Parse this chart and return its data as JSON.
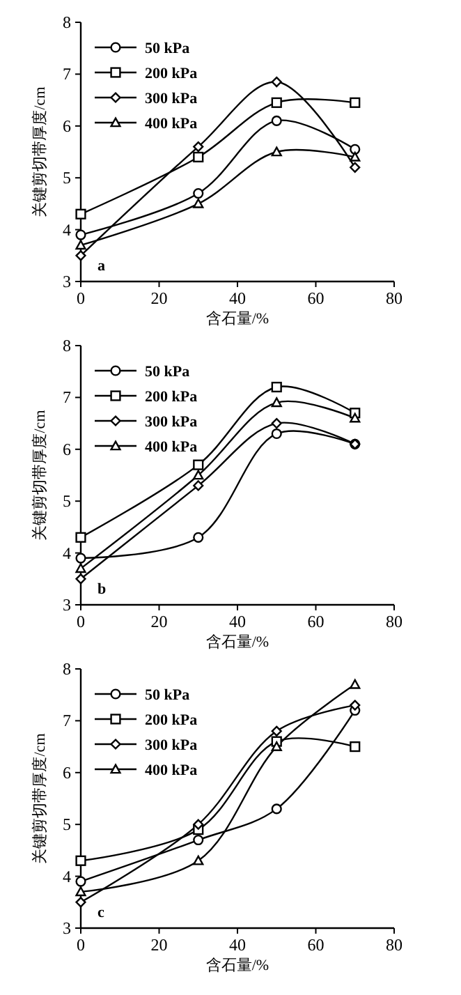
{
  "chart_data": [
    {
      "type": "line",
      "xlabel": "含石量/%",
      "ylabel": "关键剪切带厚度/cm",
      "annotations": [
        "a"
      ],
      "x": [
        0,
        30,
        50,
        70
      ],
      "xlim": [
        0,
        80
      ],
      "ylim": [
        3,
        8
      ],
      "xticks": [
        0,
        20,
        40,
        60,
        80
      ],
      "yticks": [
        3,
        4,
        5,
        6,
        7,
        8
      ],
      "legend": "top left",
      "grid": false,
      "series": [
        {
          "name": "50 kPa",
          "color": "#000000",
          "marker": "circle",
          "values": [
            3.9,
            4.7,
            6.1,
            5.55
          ]
        },
        {
          "name": "200 kPa",
          "color": "#000000",
          "marker": "square",
          "values": [
            4.3,
            5.4,
            6.45,
            6.45
          ]
        },
        {
          "name": "300 kPa",
          "color": "#000000",
          "marker": "diamond",
          "values": [
            3.5,
            5.6,
            6.85,
            5.2
          ]
        },
        {
          "name": "400 kPa",
          "color": "#000000",
          "marker": "triangle",
          "values": [
            3.7,
            4.5,
            5.5,
            5.4
          ]
        }
      ]
    },
    {
      "type": "line",
      "xlabel": "含石量/%",
      "ylabel": "关键剪切带厚度/cm",
      "annotations": [
        "b"
      ],
      "x": [
        0,
        30,
        50,
        70
      ],
      "xlim": [
        0,
        80
      ],
      "ylim": [
        3,
        8
      ],
      "xticks": [
        0,
        20,
        40,
        60,
        80
      ],
      "yticks": [
        3,
        4,
        5,
        6,
        7,
        8
      ],
      "legend": "top left",
      "grid": false,
      "series": [
        {
          "name": "50 kPa",
          "color": "#000000",
          "marker": "circle",
          "values": [
            3.9,
            4.3,
            6.3,
            6.1
          ]
        },
        {
          "name": "200 kPa",
          "color": "#000000",
          "marker": "square",
          "values": [
            4.3,
            5.7,
            7.2,
            6.7
          ]
        },
        {
          "name": "300 kPa",
          "color": "#000000",
          "marker": "diamond",
          "values": [
            3.5,
            5.3,
            6.5,
            6.1
          ]
        },
        {
          "name": "400 kPa",
          "color": "#000000",
          "marker": "triangle",
          "values": [
            3.7,
            5.5,
            6.9,
            6.6
          ]
        }
      ]
    },
    {
      "type": "line",
      "xlabel": "含石量/%",
      "ylabel": "关键剪切带厚度/cm",
      "annotations": [
        "c"
      ],
      "x": [
        0,
        30,
        50,
        70
      ],
      "xlim": [
        0,
        80
      ],
      "ylim": [
        3,
        8
      ],
      "xticks": [
        0,
        20,
        40,
        60,
        80
      ],
      "yticks": [
        3,
        4,
        5,
        6,
        7,
        8
      ],
      "legend": "top left",
      "grid": false,
      "series": [
        {
          "name": "50 kPa",
          "color": "#000000",
          "marker": "circle",
          "values": [
            3.9,
            4.7,
            5.3,
            7.2
          ]
        },
        {
          "name": "200 kPa",
          "color": "#000000",
          "marker": "square",
          "values": [
            4.3,
            4.9,
            6.6,
            6.5
          ]
        },
        {
          "name": "300 kPa",
          "color": "#000000",
          "marker": "diamond",
          "values": [
            3.5,
            5.0,
            6.8,
            7.3
          ]
        },
        {
          "name": "400 kPa",
          "color": "#000000",
          "marker": "triangle",
          "values": [
            3.7,
            4.3,
            6.5,
            7.7
          ]
        }
      ]
    }
  ]
}
